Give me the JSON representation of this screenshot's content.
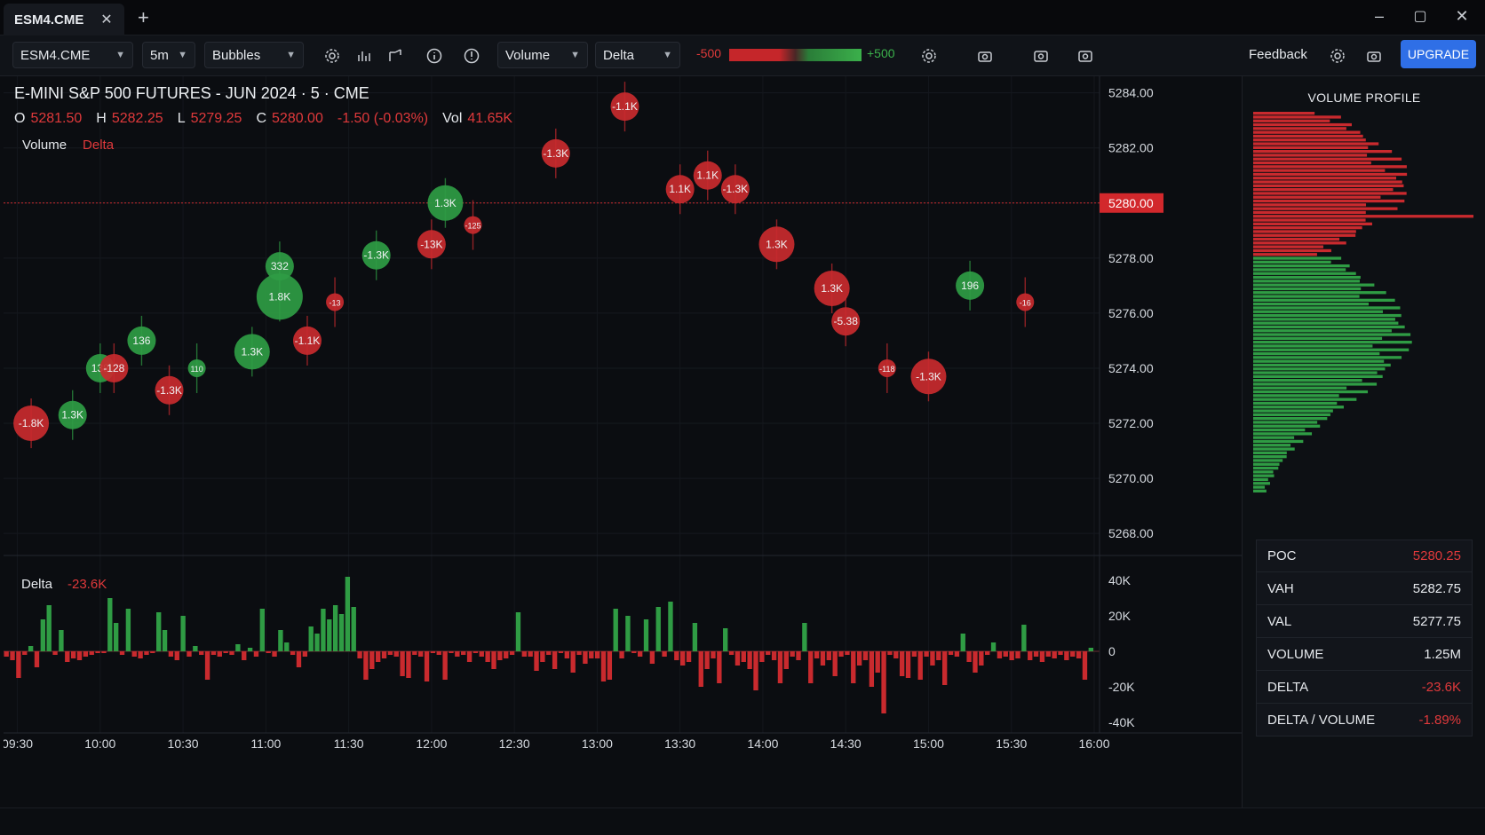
{
  "tab": {
    "label": "ESM4.CME"
  },
  "toolbar": {
    "symbol": "ESM4.CME",
    "interval": "5m",
    "style": "Bubbles",
    "metric1": "Volume",
    "metric2": "Delta",
    "legend_min": "-500",
    "legend_max": "+500",
    "feedback": "Feedback",
    "upgrade": "UPGRADE"
  },
  "header": {
    "title": "E-MINI S&P 500 FUTURES - JUN 2024 · 5 · CME",
    "o_label": "O",
    "o": "5281.50",
    "h_label": "H",
    "h": "5282.25",
    "l_label": "L",
    "l": "5279.25",
    "c_label": "C",
    "c": "5280.00",
    "change": "-1.50 (-0.03%)",
    "vol_label": "Vol",
    "vol": "41.65K",
    "legend_volume": "Volume",
    "legend_delta": "Delta"
  },
  "colors": {
    "up": "#2f9c44",
    "down": "#c92a2e",
    "bg": "#0b0d11",
    "accent": "#2f6fe6"
  },
  "chart_data": {
    "type": "bubble-candlestick",
    "price_axis": [
      "5284.00",
      "5282.00",
      "5280.00",
      "5278.00",
      "5276.00",
      "5274.00",
      "5272.00",
      "5270.00",
      "5268.00"
    ],
    "price_range": [
      5267.2,
      5284.6
    ],
    "current_price": "5280.00",
    "current_price_value": 5280.0,
    "time_axis": [
      "09:30",
      "10:00",
      "10:30",
      "11:00",
      "11:30",
      "12:00",
      "12:30",
      "13:00",
      "13:30",
      "14:00",
      "14:30",
      "15:00",
      "15:30",
      "16:00"
    ],
    "bubbles": [
      {
        "t": "09:35",
        "p": 5272.0,
        "label": "-1.8K",
        "sign": -1,
        "size": 3
      },
      {
        "t": "09:50",
        "p": 5272.3,
        "label": "1.3K",
        "sign": 1,
        "size": 2
      },
      {
        "t": "10:00",
        "p": 5274.0,
        "label": "138",
        "sign": 1,
        "size": 2
      },
      {
        "t": "10:05",
        "p": 5274.0,
        "label": "-128",
        "sign": -1,
        "size": 2
      },
      {
        "t": "10:15",
        "p": 5275.0,
        "label": "136",
        "sign": 1,
        "size": 2
      },
      {
        "t": "10:25",
        "p": 5273.2,
        "label": "-1.3K",
        "sign": -1,
        "size": 2
      },
      {
        "t": "10:35",
        "p": 5274.0,
        "label": "110",
        "sign": 1,
        "size": 1
      },
      {
        "t": "10:55",
        "p": 5274.6,
        "label": "1.3K",
        "sign": 1,
        "size": 3
      },
      {
        "t": "11:05",
        "p": 5276.6,
        "label": "1.8K",
        "sign": 1,
        "size": 4
      },
      {
        "t": "11:05",
        "p": 5277.7,
        "label": "332",
        "sign": 1,
        "size": 2
      },
      {
        "t": "11:15",
        "p": 5275.0,
        "label": "-1.1K",
        "sign": -1,
        "size": 2
      },
      {
        "t": "11:25",
        "p": 5276.4,
        "label": "-13",
        "sign": -1,
        "size": 1
      },
      {
        "t": "11:40",
        "p": 5278.1,
        "label": "-1.3K",
        "sign": 1,
        "size": 2
      },
      {
        "t": "12:00",
        "p": 5278.5,
        "label": "-13K",
        "sign": -1,
        "size": 2
      },
      {
        "t": "12:05",
        "p": 5280.0,
        "label": "1.3K",
        "sign": 1,
        "size": 3
      },
      {
        "t": "12:15",
        "p": 5279.2,
        "label": "-125",
        "sign": -1,
        "size": 1
      },
      {
        "t": "12:45",
        "p": 5281.8,
        "label": "-1.3K",
        "sign": -1,
        "size": 2
      },
      {
        "t": "13:10",
        "p": 5283.5,
        "label": "-1.1K",
        "sign": -1,
        "size": 2
      },
      {
        "t": "13:30",
        "p": 5280.5,
        "label": "1.1K",
        "sign": -1,
        "size": 2
      },
      {
        "t": "13:40",
        "p": 5281.0,
        "label": "1.1K",
        "sign": -1,
        "size": 2
      },
      {
        "t": "13:50",
        "p": 5280.5,
        "label": "-1.3K",
        "sign": -1,
        "size": 2
      },
      {
        "t": "14:05",
        "p": 5278.5,
        "label": "1.3K",
        "sign": -1,
        "size": 3
      },
      {
        "t": "14:25",
        "p": 5276.9,
        "label": "1.3K",
        "sign": -1,
        "size": 3
      },
      {
        "t": "14:30",
        "p": 5275.7,
        "label": "-5.38",
        "sign": -1,
        "size": 2
      },
      {
        "t": "14:45",
        "p": 5274.0,
        "label": "-118",
        "sign": -1,
        "size": 1
      },
      {
        "t": "15:00",
        "p": 5273.7,
        "label": "-1.3K",
        "sign": -1,
        "size": 3
      },
      {
        "t": "15:15",
        "p": 5277.0,
        "label": "196",
        "sign": 1,
        "size": 2
      },
      {
        "t": "15:35",
        "p": 5276.4,
        "label": "-16",
        "sign": -1,
        "size": 1
      }
    ],
    "delta_axis": [
      "40K",
      "20K",
      "0",
      "-20K",
      "-40K"
    ],
    "delta_range": [
      -40000,
      40000
    ],
    "delta_series": [
      -3000,
      -5000,
      -15000,
      -2000,
      3000,
      -9000,
      18000,
      26000,
      -2000,
      12000,
      -6000,
      -4000,
      -5000,
      -3000,
      -2000,
      -1000,
      -1000,
      30000,
      16000,
      -2000,
      24000,
      -3000,
      -4000,
      -2000,
      -1000,
      22000,
      12000,
      -3000,
      -5000,
      20000,
      -3000,
      3000,
      -2000,
      -16000,
      -2000,
      -3000,
      -1000,
      -2000,
      4000,
      -5000,
      2000,
      -3000,
      24000,
      -1000,
      -3000,
      12000,
      5000,
      -2000,
      -9000,
      -3000,
      14000,
      10000,
      24000,
      18000,
      26000,
      21000,
      42000,
      25000,
      -4000,
      -16000,
      -10000,
      -6000,
      -4000,
      -2000,
      -3000,
      -14000,
      -15000,
      -2000,
      -3000,
      -17000,
      -1000,
      -2000,
      -16000,
      -1000,
      -3000,
      -2000,
      -6000,
      -1000,
      -3000,
      -6000,
      -10000,
      -5000,
      -4000,
      -2000,
      22000,
      -3000,
      -3000,
      -11000,
      -6000,
      -2000,
      -10000,
      -1000,
      -4000,
      -12000,
      -2000,
      -7000,
      -4000,
      -4000,
      -17000,
      -16000,
      24000,
      -4000,
      20000,
      -1000,
      -3000,
      18000,
      -7000,
      25000,
      -3000,
      28000,
      -5000,
      -8000,
      -6000,
      16000,
      -20000,
      -10000,
      -4000,
      -18000,
      13000,
      -2000,
      -8000,
      -6000,
      -10000,
      -22000,
      -6000,
      -2000,
      -5000,
      -18000,
      -10000,
      -3000,
      -5000,
      16000,
      -18000,
      -4000,
      -8000,
      -5000,
      -14000,
      -3000,
      -2000,
      -18000,
      -8000,
      -5000,
      -20000,
      -12000,
      -35000,
      -2000,
      -4000,
      -14000,
      -15000,
      -3000,
      -16000,
      -3000,
      -8000,
      -5000,
      -19000,
      -2000,
      -3000,
      10000,
      -6000,
      -12000,
      -8000,
      -2000,
      5000,
      -4000,
      -3000,
      -5000,
      -4000,
      15000,
      -5000,
      -3000,
      -6000,
      -3000,
      -4000,
      -2000,
      -5000,
      -3000,
      -4000,
      -16000,
      2000
    ]
  },
  "delta_panel": {
    "label": "Delta",
    "value": "-23.6K"
  },
  "volume_profile": {
    "title": "VOLUME PROFILE",
    "stats": [
      {
        "label": "POC",
        "value": "5280.25",
        "neg": true
      },
      {
        "label": "VAH",
        "value": "5282.75",
        "neg": false
      },
      {
        "label": "VAL",
        "value": "5277.75",
        "neg": false
      },
      {
        "label": "VOLUME",
        "value": "1.25M",
        "neg": false
      },
      {
        "label": "DELTA",
        "value": "-23.6K",
        "neg": true
      },
      {
        "label": "DELTA / VOLUME",
        "value": "-1.89%",
        "neg": true
      }
    ]
  }
}
